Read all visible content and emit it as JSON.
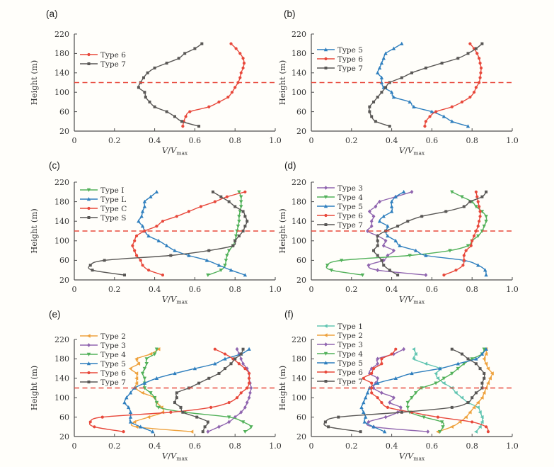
{
  "style": {
    "figure_background": "#fffefa",
    "axis_color": "#4d4d4d",
    "tick_text_color": "#333333",
    "legend_text_color": "#1f1f1f",
    "reference_line_color": "#e8483b"
  },
  "chart_data": [
    {
      "id": "a",
      "panel_label": "(a)",
      "type": "line",
      "grid": false,
      "xlabel": "V/V_max",
      "ylabel": "Height (m)",
      "xlim": [
        0,
        1.0
      ],
      "ylim": [
        20,
        220
      ],
      "xticks": [
        0,
        0.2,
        0.4,
        0.6,
        0.8,
        1.0
      ],
      "xtick_labels": [
        "0",
        "0.2",
        "0.4",
        "0.6",
        "0.8",
        "1.0"
      ],
      "yticks": [
        20,
        60,
        100,
        140,
        180,
        220
      ],
      "legend_position": "upper-left",
      "reference_line": {
        "y": 120,
        "style": "dashed",
        "color": "#e8483b"
      },
      "heights": [
        30,
        40,
        50,
        60,
        70,
        80,
        90,
        100,
        110,
        120,
        130,
        140,
        150,
        160,
        170,
        180,
        190,
        200
      ],
      "series": [
        {
          "name": "Type 6",
          "color": "#e8483b",
          "marker": "circle",
          "values": [
            0.54,
            0.545,
            0.555,
            0.575,
            0.67,
            0.72,
            0.765,
            0.785,
            0.8,
            0.815,
            0.825,
            0.83,
            0.84,
            0.845,
            0.84,
            0.825,
            0.805,
            0.78
          ]
        },
        {
          "name": "Type 7",
          "color": "#595755",
          "marker": "square",
          "values": [
            0.62,
            0.535,
            0.5,
            0.46,
            0.4,
            0.375,
            0.355,
            0.35,
            0.32,
            0.33,
            0.345,
            0.365,
            0.4,
            0.46,
            0.52,
            0.55,
            0.6,
            0.635
          ]
        }
      ]
    },
    {
      "id": "b",
      "panel_label": "(b)",
      "type": "line",
      "grid": false,
      "xlabel": "V/V_max",
      "ylabel": "Height (m)",
      "xlim": [
        0,
        1.0
      ],
      "ylim": [
        20,
        220
      ],
      "xticks": [
        0,
        0.2,
        0.4,
        0.6,
        0.8,
        1.0
      ],
      "xtick_labels": [
        "0",
        "0.2",
        "0.4",
        "0.6",
        "0.8",
        "1.0"
      ],
      "yticks": [
        20,
        60,
        100,
        140,
        180,
        220
      ],
      "legend_position": "upper-left",
      "reference_line": {
        "y": 120,
        "style": "dashed",
        "color": "#e8483b"
      },
      "heights": [
        30,
        40,
        50,
        60,
        70,
        80,
        90,
        100,
        110,
        120,
        130,
        140,
        150,
        160,
        170,
        180,
        190,
        200
      ],
      "series": [
        {
          "name": "Type 5",
          "color": "#2f7fbe",
          "marker": "triangle-up",
          "values": [
            0.78,
            0.7,
            0.66,
            0.6,
            0.51,
            0.49,
            0.41,
            0.4,
            0.36,
            0.35,
            0.35,
            0.33,
            0.34,
            0.35,
            0.36,
            0.37,
            0.41,
            0.45
          ]
        },
        {
          "name": "Type 6",
          "color": "#e8483b",
          "marker": "circle",
          "values": [
            0.565,
            0.57,
            0.59,
            0.62,
            0.7,
            0.75,
            0.79,
            0.81,
            0.82,
            0.835,
            0.84,
            0.843,
            0.845,
            0.84,
            0.835,
            0.825,
            0.81,
            0.79
          ]
        },
        {
          "name": "Type 7",
          "color": "#595755",
          "marker": "square",
          "values": [
            0.39,
            0.32,
            0.3,
            0.29,
            0.29,
            0.31,
            0.33,
            0.35,
            0.37,
            0.39,
            0.45,
            0.5,
            0.57,
            0.65,
            0.73,
            0.78,
            0.82,
            0.85
          ]
        }
      ]
    },
    {
      "id": "c",
      "panel_label": "(c)",
      "type": "line",
      "grid": false,
      "xlabel": "V/V_max",
      "ylabel": "Height (m)",
      "xlim": [
        0,
        1.0
      ],
      "ylim": [
        20,
        220
      ],
      "xticks": [
        0,
        0.2,
        0.4,
        0.6,
        0.8,
        1.0
      ],
      "xtick_labels": [
        "0",
        "0.2",
        "0.4",
        "0.6",
        "0.8",
        "1.0"
      ],
      "yticks": [
        20,
        60,
        100,
        140,
        180,
        220
      ],
      "legend_position": "upper-left",
      "reference_line": {
        "y": 120,
        "style": "dashed",
        "color": "#e8483b"
      },
      "heights": [
        30,
        40,
        50,
        60,
        70,
        80,
        90,
        100,
        110,
        120,
        130,
        140,
        150,
        160,
        170,
        180,
        190,
        200
      ],
      "series": [
        {
          "name": "Type I",
          "color": "#52b15a",
          "marker": "triangle-down",
          "values": [
            0.665,
            0.73,
            0.75,
            0.755,
            0.76,
            0.77,
            0.79,
            0.8,
            0.805,
            0.81,
            0.815,
            0.82,
            0.82,
            0.825,
            0.83,
            0.83,
            0.83,
            0.82
          ]
        },
        {
          "name": "Type L",
          "color": "#2f7fbe",
          "marker": "triangle-up",
          "values": [
            0.85,
            0.78,
            0.72,
            0.66,
            0.57,
            0.5,
            0.46,
            0.42,
            0.37,
            0.35,
            0.34,
            0.32,
            0.335,
            0.34,
            0.35,
            0.35,
            0.38,
            0.41
          ]
        },
        {
          "name": "Type C",
          "color": "#e8483b",
          "marker": "circle",
          "values": [
            0.44,
            0.37,
            0.34,
            0.33,
            0.31,
            0.3,
            0.29,
            0.3,
            0.31,
            0.35,
            0.41,
            0.44,
            0.51,
            0.57,
            0.63,
            0.7,
            0.76,
            0.85
          ]
        },
        {
          "name": "Type S",
          "color": "#595755",
          "marker": "square",
          "values": [
            0.25,
            0.09,
            0.08,
            0.15,
            0.48,
            0.67,
            0.79,
            0.8,
            0.82,
            0.84,
            0.85,
            0.86,
            0.85,
            0.84,
            0.8,
            0.77,
            0.73,
            0.69
          ]
        }
      ]
    },
    {
      "id": "d",
      "panel_label": "(d)",
      "type": "line",
      "grid": false,
      "xlabel": "V/V_max",
      "ylabel": "Height (m)",
      "xlim": [
        0,
        1.0
      ],
      "ylim": [
        20,
        220
      ],
      "xticks": [
        0,
        0.2,
        0.4,
        0.6,
        0.8,
        1.0
      ],
      "xtick_labels": [
        "0",
        "0.2",
        "0.4",
        "0.6",
        "0.8",
        "1.0"
      ],
      "yticks": [
        20,
        60,
        100,
        140,
        180,
        220
      ],
      "legend_position": "upper-left",
      "reference_line": {
        "y": 120,
        "style": "dashed",
        "color": "#e8483b"
      },
      "heights": [
        30,
        40,
        50,
        60,
        70,
        80,
        90,
        100,
        110,
        120,
        130,
        140,
        150,
        160,
        170,
        180,
        190,
        200
      ],
      "series": [
        {
          "name": "Type 3",
          "color": "#9065af",
          "marker": "diamond",
          "values": [
            0.57,
            0.33,
            0.285,
            0.36,
            0.38,
            0.41,
            0.36,
            0.37,
            0.33,
            0.28,
            0.3,
            0.3,
            0.31,
            0.29,
            0.32,
            0.34,
            0.42,
            0.5
          ]
        },
        {
          "name": "Type 4",
          "color": "#52b15a",
          "marker": "triangle-down",
          "values": [
            0.255,
            0.1,
            0.08,
            0.15,
            0.49,
            0.69,
            0.78,
            0.8,
            0.83,
            0.85,
            0.86,
            0.87,
            0.87,
            0.85,
            0.82,
            0.8,
            0.75,
            0.7
          ]
        },
        {
          "name": "Type 5",
          "color": "#2f7fbe",
          "marker": "triangle-up",
          "values": [
            0.87,
            0.865,
            0.83,
            0.76,
            0.57,
            0.52,
            0.44,
            0.42,
            0.38,
            0.37,
            0.38,
            0.34,
            0.36,
            0.4,
            0.4,
            0.4,
            0.42,
            0.46
          ]
        },
        {
          "name": "Type 6",
          "color": "#e8483b",
          "marker": "circle",
          "values": [
            0.66,
            0.72,
            0.755,
            0.76,
            0.76,
            0.77,
            0.795,
            0.8,
            0.81,
            0.82,
            0.83,
            0.835,
            0.84,
            0.84,
            0.835,
            0.83,
            0.825,
            0.82
          ]
        },
        {
          "name": "Type 7",
          "color": "#595755",
          "marker": "square",
          "values": [
            0.43,
            0.39,
            0.36,
            0.35,
            0.33,
            0.31,
            0.33,
            0.33,
            0.33,
            0.37,
            0.43,
            0.48,
            0.55,
            0.67,
            0.76,
            0.79,
            0.85,
            0.87
          ]
        }
      ]
    },
    {
      "id": "e",
      "panel_label": "(e)",
      "type": "line",
      "grid": false,
      "xlabel": "V/V_max",
      "ylabel": "Height (m)",
      "xlim": [
        0,
        1.0
      ],
      "ylim": [
        20,
        220
      ],
      "xticks": [
        0,
        0.2,
        0.4,
        0.6,
        0.8,
        1.0
      ],
      "xtick_labels": [
        "0",
        "0.2",
        "0.4",
        "0.6",
        "0.8",
        "1.0"
      ],
      "yticks": [
        20,
        60,
        100,
        140,
        180,
        220
      ],
      "legend_position": "upper-left",
      "reference_line": {
        "y": 120,
        "style": "dashed",
        "color": "#e8483b"
      },
      "heights": [
        30,
        40,
        50,
        60,
        70,
        80,
        90,
        100,
        110,
        120,
        130,
        140,
        150,
        160,
        170,
        180,
        190,
        200
      ],
      "series": [
        {
          "name": "Type 2",
          "color": "#eea23e",
          "marker": "triangle-left",
          "values": [
            0.585,
            0.31,
            0.3,
            0.37,
            0.44,
            0.435,
            0.41,
            0.4,
            0.34,
            0.305,
            0.31,
            0.31,
            0.31,
            0.28,
            0.32,
            0.31,
            0.38,
            0.42
          ]
        },
        {
          "name": "Type 3",
          "color": "#9065af",
          "marker": "diamond",
          "values": [
            0.665,
            0.72,
            0.77,
            0.8,
            0.83,
            0.85,
            0.86,
            0.87,
            0.875,
            0.88,
            0.875,
            0.87,
            0.87,
            0.86,
            0.84,
            0.83,
            0.82,
            0.81
          ]
        },
        {
          "name": "Type 4",
          "color": "#52b15a",
          "marker": "triangle-down",
          "values": [
            0.85,
            0.88,
            0.84,
            0.77,
            0.55,
            0.42,
            0.41,
            0.4,
            0.38,
            0.35,
            0.35,
            0.35,
            0.34,
            0.35,
            0.36,
            0.36,
            0.4,
            0.41
          ]
        },
        {
          "name": "Type 5",
          "color": "#2f7fbe",
          "marker": "triangle-up",
          "values": [
            0.39,
            0.33,
            0.28,
            0.28,
            0.28,
            0.27,
            0.25,
            0.26,
            0.28,
            0.3,
            0.35,
            0.41,
            0.5,
            0.6,
            0.7,
            0.75,
            0.83,
            0.87
          ]
        },
        {
          "name": "Type 6",
          "color": "#e8483b",
          "marker": "circle",
          "values": [
            0.245,
            0.1,
            0.08,
            0.14,
            0.48,
            0.68,
            0.77,
            0.81,
            0.83,
            0.86,
            0.87,
            0.87,
            0.87,
            0.85,
            0.82,
            0.79,
            0.75,
            0.7
          ]
        },
        {
          "name": "Type 7",
          "color": "#595755",
          "marker": "square",
          "values": [
            0.64,
            0.65,
            0.665,
            0.61,
            0.54,
            0.53,
            0.5,
            0.51,
            0.51,
            0.57,
            0.62,
            0.67,
            0.72,
            0.75,
            0.78,
            0.8,
            0.83,
            0.84
          ]
        }
      ]
    },
    {
      "id": "f",
      "panel_label": "(f)",
      "type": "line",
      "grid": false,
      "xlabel": "V/V_max",
      "ylabel": "Height (m)",
      "xlim": [
        0,
        1.0
      ],
      "ylim": [
        20,
        220
      ],
      "xticks": [
        0,
        0.2,
        0.4,
        0.6,
        0.8,
        1.0
      ],
      "xtick_labels": [
        "0",
        "0.2",
        "0.4",
        "0.6",
        "0.8",
        "1.0"
      ],
      "yticks": [
        20,
        60,
        100,
        140,
        180,
        220
      ],
      "legend_position": "upper-left",
      "reference_line": {
        "y": 120,
        "style": "dashed",
        "color": "#e8483b"
      },
      "heights": [
        30,
        40,
        50,
        60,
        70,
        80,
        90,
        100,
        110,
        120,
        130,
        140,
        150,
        160,
        170,
        180,
        190,
        200
      ],
      "series": [
        {
          "name": "Type 1",
          "color": "#62c5b2",
          "marker": "triangle-left",
          "values": [
            0.82,
            0.84,
            0.85,
            0.85,
            0.84,
            0.83,
            0.78,
            0.75,
            0.72,
            0.7,
            0.66,
            0.63,
            0.62,
            0.64,
            0.57,
            0.51,
            0.52,
            0.51
          ]
        },
        {
          "name": "Type 2",
          "color": "#eea23e",
          "marker": "triangle-left",
          "values": [
            0.63,
            0.7,
            0.74,
            0.77,
            0.79,
            0.81,
            0.83,
            0.85,
            0.86,
            0.87,
            0.88,
            0.89,
            0.9,
            0.88,
            0.87,
            0.86,
            0.87,
            0.87
          ]
        },
        {
          "name": "Type 3",
          "color": "#9065af",
          "marker": "diamond",
          "values": [
            0.58,
            0.31,
            0.285,
            0.37,
            0.43,
            0.445,
            0.39,
            0.41,
            0.35,
            0.31,
            0.32,
            0.33,
            0.29,
            0.3,
            0.33,
            0.33,
            0.41,
            0.46
          ]
        },
        {
          "name": "Type 4",
          "color": "#52b15a",
          "marker": "triangle-down",
          "values": [
            0.64,
            0.655,
            0.65,
            0.56,
            0.49,
            0.48,
            0.48,
            0.5,
            0.52,
            0.55,
            0.62,
            0.66,
            0.7,
            0.73,
            0.76,
            0.8,
            0.85,
            0.86
          ]
        },
        {
          "name": "Type 5",
          "color": "#2f7fbe",
          "marker": "triangle-up",
          "values": [
            0.365,
            0.31,
            0.265,
            0.27,
            0.26,
            0.25,
            0.26,
            0.27,
            0.28,
            0.29,
            0.33,
            0.42,
            0.5,
            0.64,
            0.73,
            0.82,
            0.85,
            0.87
          ]
        },
        {
          "name": "Type 6",
          "color": "#e8483b",
          "marker": "circle",
          "values": [
            0.88,
            0.87,
            0.8,
            0.63,
            0.5,
            0.38,
            0.35,
            0.33,
            0.3,
            0.3,
            0.3,
            0.26,
            0.3,
            0.31,
            0.35,
            0.35,
            0.4,
            0.42
          ]
        },
        {
          "name": "Type 7",
          "color": "#595755",
          "marker": "square",
          "values": [
            0.245,
            0.085,
            0.07,
            0.135,
            0.45,
            0.7,
            0.78,
            0.8,
            0.82,
            0.85,
            0.85,
            0.86,
            0.86,
            0.84,
            0.82,
            0.78,
            0.75,
            0.7
          ]
        }
      ]
    }
  ]
}
